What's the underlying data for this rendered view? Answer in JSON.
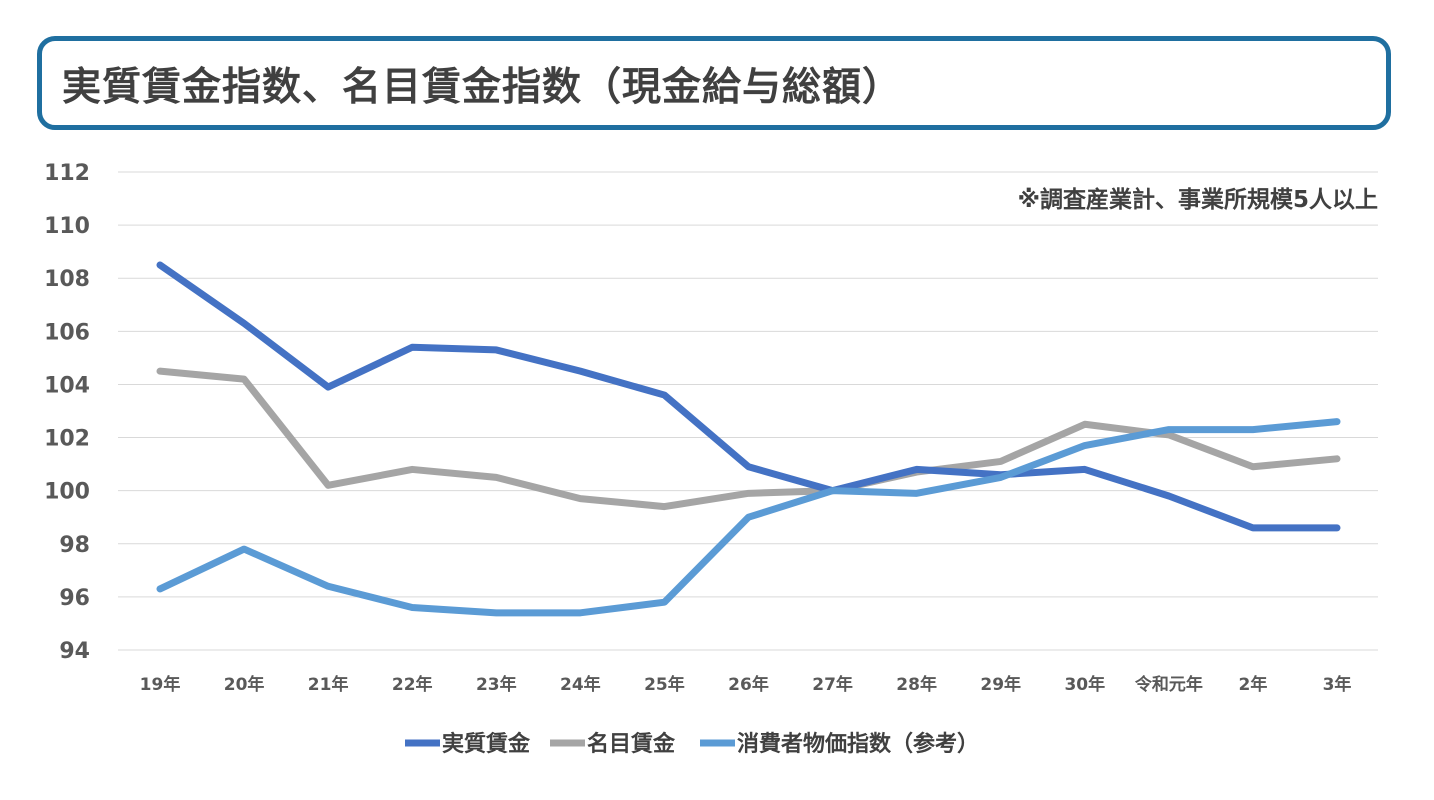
{
  "chart_data": {
    "type": "line",
    "title": "実質賃金指数、名目賃金指数（現金給与総額）",
    "annotation": "※調査産業計、事業所規模5人以上",
    "categories": [
      "19年",
      "20年",
      "21年",
      "22年",
      "23年",
      "24年",
      "25年",
      "26年",
      "27年",
      "28年",
      "29年",
      "30年",
      "令和元年",
      "2年",
      "3年"
    ],
    "ylim": [
      94,
      112
    ],
    "yticks": [
      94,
      96,
      98,
      100,
      102,
      104,
      106,
      108,
      110,
      112
    ],
    "grid": true,
    "legend_position": "bottom",
    "series": [
      {
        "name": "実質賃金",
        "color": "#4472c4",
        "values": [
          108.5,
          106.3,
          103.9,
          105.4,
          105.3,
          104.5,
          103.6,
          100.9,
          100.0,
          100.8,
          100.6,
          100.8,
          99.8,
          98.6,
          98.6
        ]
      },
      {
        "name": "名目賃金",
        "color": "#a5a5a5",
        "values": [
          104.5,
          104.2,
          100.2,
          100.8,
          100.5,
          99.7,
          99.4,
          99.9,
          100.0,
          100.7,
          101.1,
          102.5,
          102.1,
          100.9,
          101.2
        ]
      },
      {
        "name": "消費者物価指数（参考）",
        "color": "#5b9bd5",
        "values": [
          96.3,
          97.8,
          96.4,
          95.6,
          95.4,
          95.4,
          95.8,
          99.0,
          100.0,
          99.9,
          100.5,
          101.7,
          102.3,
          102.3,
          102.6
        ]
      }
    ]
  }
}
